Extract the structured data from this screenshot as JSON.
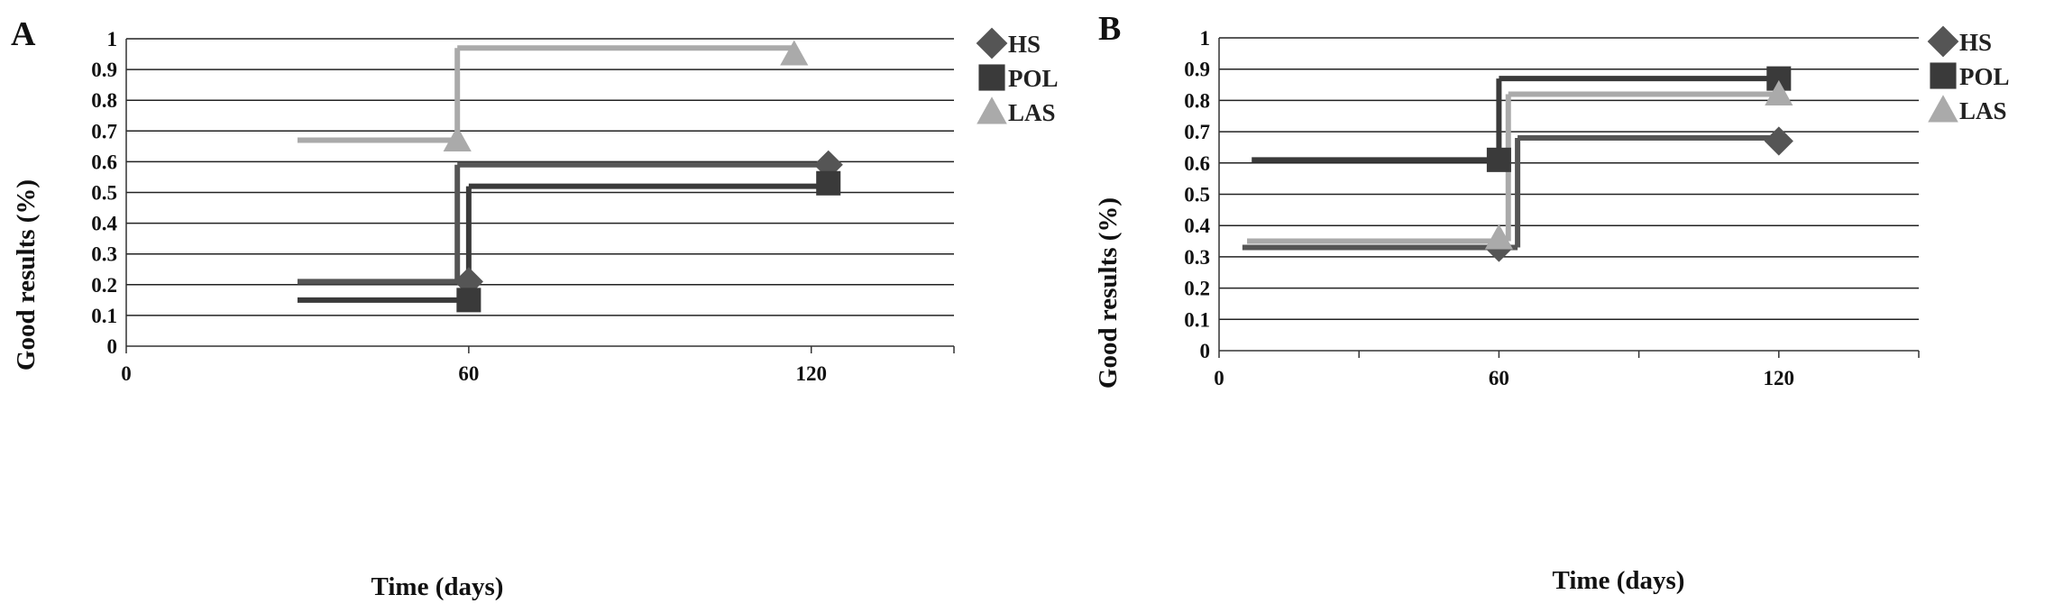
{
  "chart_data": [
    {
      "panel": "A",
      "type": "line",
      "xlabel": "Time (days)",
      "ylabel": "Good results (%)",
      "xlim": [
        0,
        145
      ],
      "ylim": [
        0,
        1
      ],
      "xticks": [
        0,
        60,
        120
      ],
      "yticks": [
        0,
        0.1,
        0.2,
        0.3,
        0.4,
        0.5,
        0.6,
        0.7,
        0.8,
        0.9,
        1
      ],
      "grid": "horizontal",
      "legend_position": "right",
      "series": [
        {
          "name": "HS",
          "marker": "diamond",
          "color": "#555555",
          "x": [
            30,
            60,
            120
          ],
          "y": [
            0.21,
            0.59,
            0.59
          ],
          "steps": [
            {
              "x0": 30,
              "x1": 58,
              "y": 0.21
            },
            {
              "xs": 58,
              "y0": 0.21,
              "y1": 0.59
            },
            {
              "x0": 58,
              "x1": 123,
              "y": 0.59
            }
          ],
          "markers": [
            {
              "x": 60,
              "y": 0.21
            },
            {
              "x": 123,
              "y": 0.59
            }
          ]
        },
        {
          "name": "POL",
          "marker": "square",
          "color": "#3a3a3a",
          "x": [
            30,
            60,
            120
          ],
          "y": [
            0.15,
            0.52,
            0.53
          ],
          "steps": [
            {
              "x0": 30,
              "x1": 60,
              "y": 0.15
            },
            {
              "xs": 60,
              "y0": 0.15,
              "y1": 0.52
            },
            {
              "x0": 60,
              "x1": 123,
              "y": 0.52
            }
          ],
          "markers": [
            {
              "x": 60,
              "y": 0.15
            },
            {
              "x": 123,
              "y": 0.53
            }
          ]
        },
        {
          "name": "LAS",
          "marker": "triangle",
          "color": "#aaaaaa",
          "x": [
            30,
            60,
            120
          ],
          "y": [
            0.67,
            0.97,
            0.96
          ],
          "steps": [
            {
              "x0": 30,
              "x1": 58,
              "y": 0.67
            },
            {
              "xs": 58,
              "y0": 0.67,
              "y1": 0.97
            },
            {
              "x0": 58,
              "x1": 117,
              "y": 0.97
            }
          ],
          "markers": [
            {
              "x": 58,
              "y": 0.67
            },
            {
              "x": 117,
              "y": 0.95
            }
          ]
        }
      ]
    },
    {
      "panel": "B",
      "type": "line",
      "xlabel": "Time (days)",
      "ylabel": "Good results (%)",
      "xlim": [
        0,
        150
      ],
      "ylim": [
        0,
        1
      ],
      "xticks": [
        0,
        60,
        120
      ],
      "yticks": [
        0,
        0.1,
        0.2,
        0.3,
        0.4,
        0.5,
        0.6,
        0.7,
        0.8,
        0.9,
        1
      ],
      "grid": "horizontal",
      "legend_position": "right",
      "series": [
        {
          "name": "HS",
          "marker": "diamond",
          "color": "#555555",
          "x": [
            0,
            60,
            120
          ],
          "y": [
            0.33,
            0.67,
            0.67
          ],
          "steps": [
            {
              "x0": 5,
              "x1": 64,
              "y": 0.33
            },
            {
              "xs": 64,
              "y0": 0.33,
              "y1": 0.68
            },
            {
              "x0": 64,
              "x1": 120,
              "y": 0.68
            }
          ],
          "markers": [
            {
              "x": 60,
              "y": 0.33
            },
            {
              "x": 120,
              "y": 0.67
            }
          ]
        },
        {
          "name": "POL",
          "marker": "square",
          "color": "#3a3a3a",
          "x": [
            0,
            60,
            120
          ],
          "y": [
            0.6,
            0.87,
            0.87
          ],
          "steps": [
            {
              "x0": 7,
              "x1": 60,
              "y": 0.61
            },
            {
              "xs": 60,
              "y0": 0.61,
              "y1": 0.87
            },
            {
              "x0": 60,
              "x1": 120,
              "y": 0.87
            }
          ],
          "markers": [
            {
              "x": 60,
              "y": 0.61
            },
            {
              "x": 120,
              "y": 0.87
            }
          ]
        },
        {
          "name": "LAS",
          "marker": "triangle",
          "color": "#aaaaaa",
          "x": [
            0,
            60,
            120
          ],
          "y": [
            0.36,
            0.82,
            0.82
          ],
          "steps": [
            {
              "x0": 6,
              "x1": 62,
              "y": 0.35
            },
            {
              "xs": 62,
              "y0": 0.35,
              "y1": 0.82
            },
            {
              "x0": 62,
              "x1": 120,
              "y": 0.82
            }
          ],
          "markers": [
            {
              "x": 60,
              "y": 0.36
            },
            {
              "x": 120,
              "y": 0.82
            }
          ]
        }
      ]
    }
  ]
}
